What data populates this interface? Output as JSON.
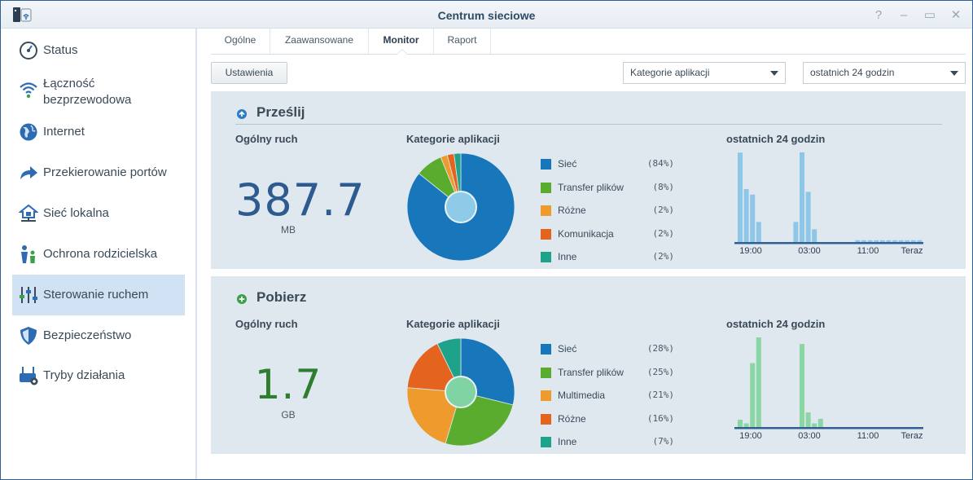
{
  "window": {
    "title": "Centrum sieciowe",
    "controls": [
      "?",
      "–",
      "▭",
      "✕"
    ]
  },
  "sidebar": {
    "items": [
      {
        "label": "Status",
        "icon": "gauge-icon",
        "active": false
      },
      {
        "label": "Łączność\nbezprzewodowa",
        "icon": "wifi-icon",
        "active": false
      },
      {
        "label": "Internet",
        "icon": "globe-icon",
        "active": false
      },
      {
        "label": "Przekierowanie portów",
        "icon": "arrow-forward-icon",
        "active": false
      },
      {
        "label": "Sieć lokalna",
        "icon": "home-network-icon",
        "active": false
      },
      {
        "label": "Ochrona rodzicielska",
        "icon": "family-icon",
        "active": false
      },
      {
        "label": "Sterowanie ruchem",
        "icon": "sliders-icon",
        "active": true
      },
      {
        "label": "Bezpieczeństwo",
        "icon": "shield-icon",
        "active": false
      },
      {
        "label": "Tryby działania",
        "icon": "router-gear-icon",
        "active": false
      }
    ]
  },
  "tabs": [
    {
      "label": "Ogólne",
      "active": false
    },
    {
      "label": "Zaawansowane",
      "active": false
    },
    {
      "label": "Monitor",
      "active": true
    },
    {
      "label": "Raport",
      "active": false
    }
  ],
  "toolbar": {
    "settings_label": "Ustawienia",
    "category_select": "Kategorie aplikacji",
    "period_select": "ostatnich 24 godzin"
  },
  "colors": {
    "upload_bars": "#8ec6e8",
    "download_bars": "#8ad7a3",
    "axis": "#2f5f93",
    "upload_value": "#2d5b8f",
    "download_value": "#2f7d2f"
  },
  "upload": {
    "title": "Prześlij",
    "total_label": "Ogólny ruch",
    "total_value": "387.7",
    "total_unit": "MB",
    "categories_label": "Kategorie aplikacji",
    "period_label": "ostatnich 24 godzin",
    "legend": [
      {
        "name": "Sieć",
        "pct": "(84%)",
        "value": 84,
        "color": "#1777ba"
      },
      {
        "name": "Transfer plików",
        "pct": "(8%)",
        "value": 8,
        "color": "#5aac2e"
      },
      {
        "name": "Różne",
        "pct": "(2%)",
        "value": 2,
        "color": "#ee9a2c"
      },
      {
        "name": "Komunikacja",
        "pct": "(2%)",
        "value": 2,
        "color": "#e3631f"
      },
      {
        "name": "Inne",
        "pct": "(2%)",
        "value": 2,
        "color": "#1ea38a"
      }
    ],
    "x_ticks": [
      "19:00",
      "03:00",
      "11:00",
      "Teraz"
    ],
    "bars": [
      0.98,
      0.58,
      0.52,
      0.22,
      0,
      0,
      0,
      0,
      0,
      0.22,
      1.0,
      0.55,
      0.14,
      0,
      0,
      0,
      0,
      0,
      0,
      0.02,
      0.02,
      0.02,
      0.02,
      0.02,
      0.02,
      0.02,
      0.02,
      0.02,
      0.02,
      0.02
    ]
  },
  "download": {
    "title": "Pobierz",
    "total_label": "Ogólny ruch",
    "total_value": "1.7",
    "total_unit": "GB",
    "categories_label": "Kategorie aplikacji",
    "period_label": "ostatnich 24 godzin",
    "legend": [
      {
        "name": "Sieć",
        "pct": "(28%)",
        "value": 28,
        "color": "#1777ba"
      },
      {
        "name": "Transfer plików",
        "pct": "(25%)",
        "value": 25,
        "color": "#5aac2e"
      },
      {
        "name": "Multimedia",
        "pct": "(21%)",
        "value": 21,
        "color": "#ee9a2c"
      },
      {
        "name": "Różne",
        "pct": "(16%)",
        "value": 16,
        "color": "#e3631f"
      },
      {
        "name": "Inne",
        "pct": "(7%)",
        "value": 7,
        "color": "#1ea38a"
      }
    ],
    "x_ticks": [
      "19:00",
      "03:00",
      "11:00",
      "Teraz"
    ],
    "bars": [
      0.08,
      0.04,
      0.7,
      1.0,
      0,
      0,
      0,
      0,
      0,
      0,
      0.91,
      0.16,
      0.04,
      0.09,
      0,
      0,
      0,
      0,
      0,
      0,
      0,
      0,
      0,
      0,
      0,
      0,
      0,
      0,
      0,
      0
    ]
  }
}
